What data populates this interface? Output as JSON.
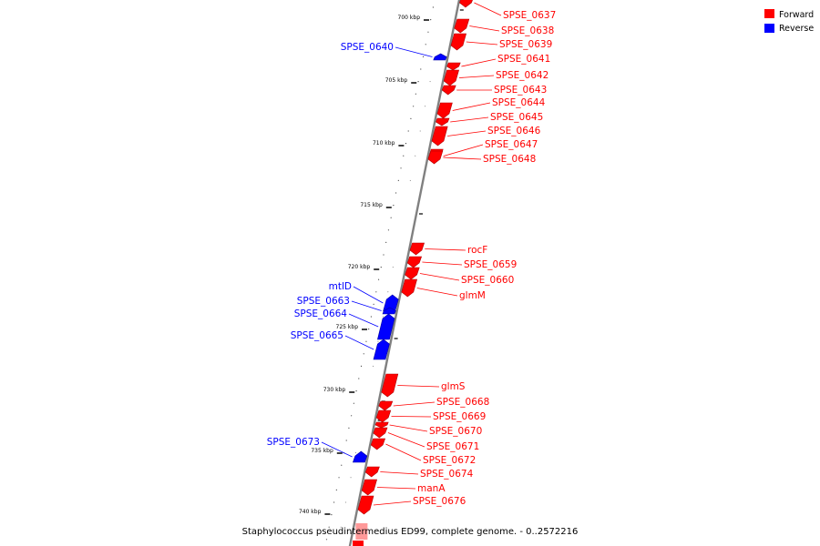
{
  "caption": "Staphylococcus pseudintermedius ED99, complete genome. - 0..2572216",
  "legend": [
    {
      "label": "Forward",
      "color": "#ff0000"
    },
    {
      "label": "Reverse",
      "color": "#0000ff"
    }
  ],
  "colors": {
    "forward": "#ff0000",
    "reverse": "#0000ff",
    "backbone": "#808080"
  },
  "ticks": [
    "700 kbp",
    "705 kbp",
    "710 kbp",
    "715 kbp",
    "720 kbp",
    "725 kbp",
    "730 kbp",
    "735 kbp",
    "740 kbp"
  ],
  "features": [
    {
      "name": "SPSE_0637",
      "strand": "forward"
    },
    {
      "name": "SPSE_0638",
      "strand": "forward"
    },
    {
      "name": "SPSE_0639",
      "strand": "forward"
    },
    {
      "name": "SPSE_0640",
      "strand": "reverse"
    },
    {
      "name": "SPSE_0641",
      "strand": "forward"
    },
    {
      "name": "SPSE_0642",
      "strand": "forward"
    },
    {
      "name": "SPSE_0643",
      "strand": "forward"
    },
    {
      "name": "SPSE_0644",
      "strand": "forward"
    },
    {
      "name": "SPSE_0645",
      "strand": "forward"
    },
    {
      "name": "SPSE_0646",
      "strand": "forward"
    },
    {
      "name": "SPSE_0647",
      "strand": "forward"
    },
    {
      "name": "SPSE_0648",
      "strand": "forward"
    },
    {
      "name": "rocF",
      "strand": "forward"
    },
    {
      "name": "SPSE_0659",
      "strand": "forward"
    },
    {
      "name": "SPSE_0660",
      "strand": "forward"
    },
    {
      "name": "glmM",
      "strand": "forward"
    },
    {
      "name": "mtlD",
      "strand": "reverse"
    },
    {
      "name": "SPSE_0663",
      "strand": "reverse"
    },
    {
      "name": "SPSE_0664",
      "strand": "reverse"
    },
    {
      "name": "SPSE_0665",
      "strand": "reverse"
    },
    {
      "name": "glmS",
      "strand": "forward"
    },
    {
      "name": "SPSE_0668",
      "strand": "forward"
    },
    {
      "name": "SPSE_0669",
      "strand": "forward"
    },
    {
      "name": "SPSE_0670",
      "strand": "forward"
    },
    {
      "name": "SPSE_0671",
      "strand": "forward"
    },
    {
      "name": "SPSE_0672",
      "strand": "forward"
    },
    {
      "name": "SPSE_0673",
      "strand": "reverse"
    },
    {
      "name": "SPSE_0674",
      "strand": "forward"
    },
    {
      "name": "manA",
      "strand": "forward"
    },
    {
      "name": "SPSE_0676",
      "strand": "forward"
    }
  ]
}
